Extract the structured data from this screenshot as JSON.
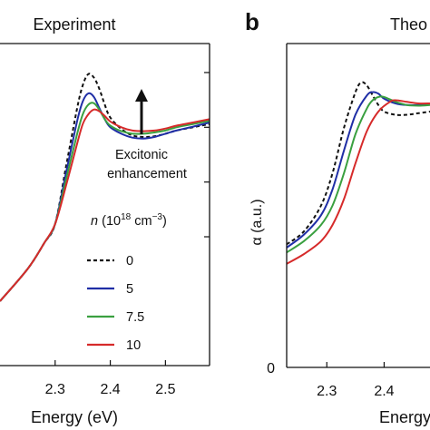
{
  "chart_data": [
    {
      "panel": "",
      "type": "line",
      "title": "Experiment",
      "xlabel": "Energy (eV)",
      "ylabel": "",
      "xlim": [
        2.2,
        2.58
      ],
      "ylim": [
        0,
        1
      ],
      "xticks": [
        "2.3",
        "2.4",
        "2.5"
      ],
      "grid": false,
      "legend": {
        "title_var": "n",
        "title_unit": "(10",
        "title_exp1": "18",
        "title_unit2": " cm",
        "title_exp2": "−3",
        "title_close": ")",
        "placement": "right"
      },
      "annotation": {
        "line1": "Excitonic",
        "line2": "enhancement"
      },
      "series": [
        {
          "name": "0",
          "color": "#111111",
          "dash": true,
          "x": [
            2.2,
            2.25,
            2.28,
            2.3,
            2.32,
            2.34,
            2.35,
            2.36,
            2.37,
            2.38,
            2.39,
            2.4,
            2.42,
            2.44,
            2.46,
            2.48,
            2.5,
            2.52,
            2.55,
            2.58
          ],
          "y": [
            0.2,
            0.3,
            0.38,
            0.44,
            0.62,
            0.8,
            0.87,
            0.905,
            0.895,
            0.86,
            0.81,
            0.77,
            0.735,
            0.715,
            0.71,
            0.712,
            0.72,
            0.73,
            0.74,
            0.75
          ]
        },
        {
          "name": "5",
          "color": "#1f2ea6",
          "dash": false,
          "x": [
            2.2,
            2.25,
            2.28,
            2.3,
            2.32,
            2.34,
            2.35,
            2.36,
            2.37,
            2.38,
            2.39,
            2.4,
            2.42,
            2.44,
            2.46,
            2.48,
            2.5,
            2.52,
            2.55,
            2.58
          ],
          "y": [
            0.2,
            0.3,
            0.38,
            0.44,
            0.6,
            0.76,
            0.82,
            0.845,
            0.835,
            0.8,
            0.765,
            0.74,
            0.72,
            0.708,
            0.705,
            0.71,
            0.72,
            0.73,
            0.742,
            0.755
          ]
        },
        {
          "name": "7.5",
          "color": "#3aa040",
          "dash": false,
          "x": [
            2.2,
            2.25,
            2.28,
            2.3,
            2.32,
            2.34,
            2.35,
            2.36,
            2.37,
            2.38,
            2.39,
            2.4,
            2.42,
            2.44,
            2.46,
            2.48,
            2.5,
            2.52,
            2.55,
            2.58
          ],
          "y": [
            0.2,
            0.3,
            0.38,
            0.44,
            0.58,
            0.72,
            0.78,
            0.81,
            0.815,
            0.795,
            0.765,
            0.745,
            0.728,
            0.72,
            0.72,
            0.724,
            0.73,
            0.74,
            0.75,
            0.76
          ]
        },
        {
          "name": "10",
          "color": "#d62a2a",
          "dash": false,
          "x": [
            2.2,
            2.25,
            2.28,
            2.3,
            2.32,
            2.34,
            2.35,
            2.36,
            2.37,
            2.38,
            2.39,
            2.4,
            2.42,
            2.44,
            2.46,
            2.48,
            2.5,
            2.52,
            2.55,
            2.58
          ],
          "y": [
            0.2,
            0.3,
            0.38,
            0.44,
            0.56,
            0.69,
            0.75,
            0.78,
            0.795,
            0.79,
            0.775,
            0.758,
            0.74,
            0.73,
            0.728,
            0.73,
            0.736,
            0.745,
            0.755,
            0.765
          ]
        }
      ]
    },
    {
      "panel": "b",
      "type": "line",
      "title": "Theo",
      "xlabel": "Energy",
      "ylabel": "α (a.u.)",
      "xlim": [
        2.23,
        2.48
      ],
      "ylim": [
        0,
        1
      ],
      "xticks": [
        "2.3",
        "2.4"
      ],
      "yticks": [
        "0"
      ],
      "grid": false,
      "series": [
        {
          "name": "0",
          "color": "#111111",
          "dash": true,
          "x": [
            2.23,
            2.26,
            2.29,
            2.31,
            2.33,
            2.35,
            2.36,
            2.37,
            2.38,
            2.39,
            2.4,
            2.42,
            2.44,
            2.46,
            2.48
          ],
          "y": [
            0.38,
            0.42,
            0.5,
            0.6,
            0.74,
            0.85,
            0.88,
            0.87,
            0.84,
            0.81,
            0.79,
            0.78,
            0.78,
            0.785,
            0.79
          ]
        },
        {
          "name": "5",
          "color": "#1f2ea6",
          "dash": false,
          "x": [
            2.23,
            2.26,
            2.29,
            2.31,
            2.33,
            2.35,
            2.37,
            2.38,
            2.39,
            2.4,
            2.42,
            2.44,
            2.46,
            2.48
          ],
          "y": [
            0.37,
            0.41,
            0.47,
            0.55,
            0.67,
            0.78,
            0.84,
            0.85,
            0.845,
            0.83,
            0.815,
            0.81,
            0.81,
            0.815
          ]
        },
        {
          "name": "7.5",
          "color": "#3aa040",
          "dash": false,
          "x": [
            2.23,
            2.26,
            2.29,
            2.31,
            2.33,
            2.35,
            2.37,
            2.38,
            2.39,
            2.4,
            2.42,
            2.44,
            2.46,
            2.48
          ],
          "y": [
            0.355,
            0.39,
            0.44,
            0.5,
            0.6,
            0.72,
            0.8,
            0.825,
            0.835,
            0.835,
            0.82,
            0.81,
            0.808,
            0.81
          ]
        },
        {
          "name": "10",
          "color": "#d62a2a",
          "dash": false,
          "x": [
            2.23,
            2.26,
            2.29,
            2.31,
            2.33,
            2.35,
            2.37,
            2.39,
            2.41,
            2.42,
            2.44,
            2.46,
            2.48
          ],
          "y": [
            0.32,
            0.35,
            0.39,
            0.44,
            0.52,
            0.63,
            0.73,
            0.79,
            0.82,
            0.825,
            0.82,
            0.815,
            0.815
          ]
        }
      ]
    }
  ]
}
